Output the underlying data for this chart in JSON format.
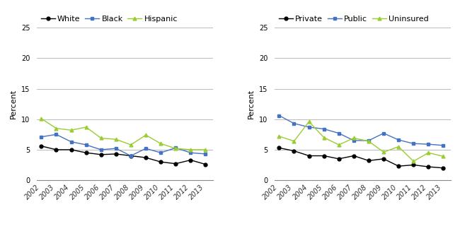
{
  "years": [
    2002,
    2003,
    2004,
    2005,
    2006,
    2007,
    2008,
    2009,
    2010,
    2011,
    2012,
    2013
  ],
  "chart1": {
    "series_order": [
      "White",
      "Black",
      "Hispanic"
    ],
    "series": {
      "White": [
        5.6,
        5.0,
        5.0,
        4.5,
        4.2,
        4.3,
        4.0,
        3.7,
        3.0,
        2.7,
        3.3,
        2.6
      ],
      "Black": [
        7.1,
        7.5,
        6.3,
        5.8,
        5.0,
        5.2,
        4.0,
        5.2,
        4.5,
        5.3,
        4.5,
        4.3
      ],
      "Hispanic": [
        10.1,
        8.5,
        8.2,
        8.7,
        6.9,
        6.7,
        5.8,
        7.4,
        6.0,
        5.2,
        5.0,
        5.0
      ]
    },
    "colors": {
      "White": "#000000",
      "Black": "#4472c4",
      "Hispanic": "#9acd32"
    },
    "markers": {
      "White": "o",
      "Black": "s",
      "Hispanic": "^"
    }
  },
  "chart2": {
    "series_order": [
      "Private",
      "Public",
      "Uninsured"
    ],
    "series": {
      "Private": [
        5.3,
        4.8,
        4.0,
        4.0,
        3.5,
        4.0,
        3.2,
        3.5,
        2.3,
        2.5,
        2.2,
        2.0
      ],
      "Public": [
        10.6,
        9.3,
        8.7,
        8.4,
        7.7,
        6.5,
        6.5,
        7.7,
        6.6,
        6.0,
        5.9,
        5.7
      ],
      "Uninsured": [
        7.2,
        6.4,
        9.6,
        7.0,
        5.8,
        6.9,
        6.4,
        4.6,
        5.5,
        3.1,
        4.5,
        3.9
      ]
    },
    "colors": {
      "Private": "#000000",
      "Public": "#4472c4",
      "Uninsured": "#9acd32"
    },
    "markers": {
      "Private": "o",
      "Public": "s",
      "Uninsured": "^"
    }
  },
  "ylim": [
    0,
    25
  ],
  "yticks": [
    0,
    5,
    10,
    15,
    20,
    25
  ],
  "ylabel": "Percent",
  "background_color": "#ffffff",
  "grid_color": "#b0b0b0",
  "tick_fontsize": 7,
  "ylabel_fontsize": 8,
  "legend_fontsize": 8
}
